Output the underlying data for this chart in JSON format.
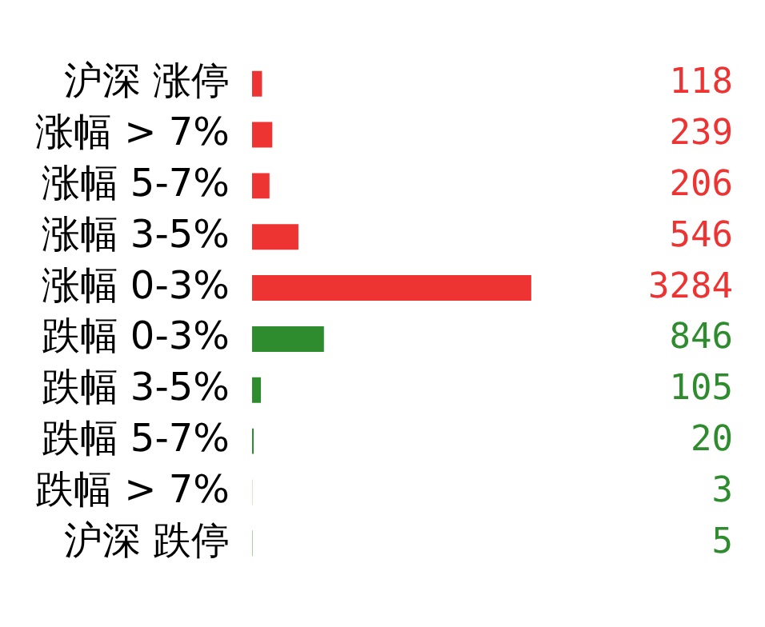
{
  "chart_data": {
    "type": "bar",
    "orientation": "horizontal",
    "categories": [
      "沪深 涨停",
      "涨幅 > 7%",
      "涨幅 5-7%",
      "涨幅 3-5%",
      "涨幅 0-3%",
      "跌幅 0-3%",
      "跌幅 3-5%",
      "跌幅 5-7%",
      "跌幅 > 7%",
      "沪深 跌停"
    ],
    "values": [
      118,
      239,
      206,
      546,
      3284,
      846,
      105,
      20,
      3,
      5
    ],
    "colors": [
      "#ee3333",
      "#ee3333",
      "#ee3333",
      "#ee3333",
      "#ee3333",
      "#2e8b2e",
      "#2e8b2e",
      "#2e8b2e",
      "#2e8b2e",
      "#2e8b2e"
    ],
    "data_labels": true,
    "grid": false,
    "legend": false,
    "tick_labels": "y"
  }
}
